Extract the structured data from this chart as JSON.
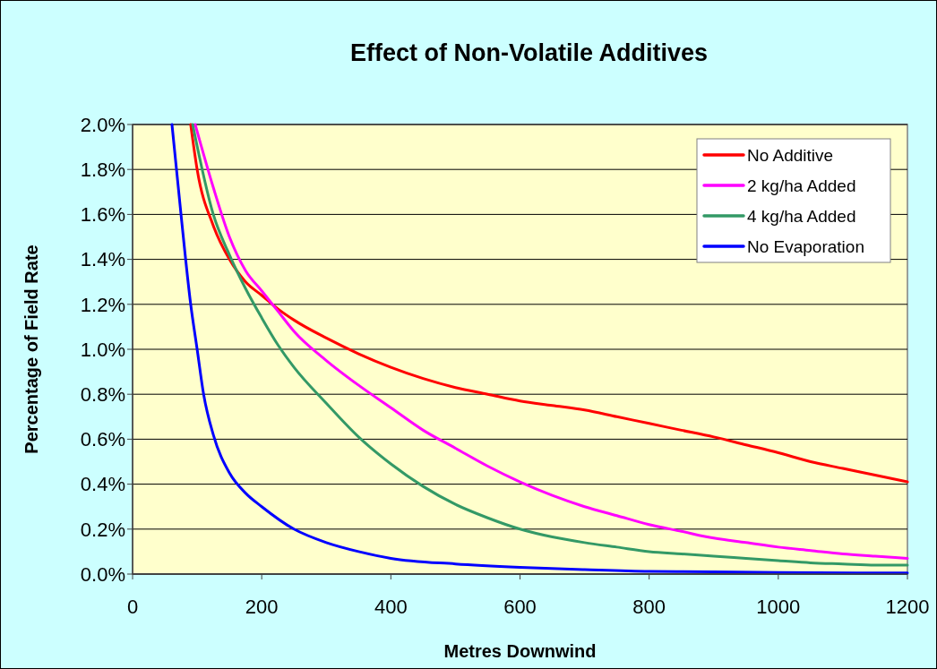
{
  "chart_data": {
    "type": "line",
    "title": "Effect of Non-Volatile Additives",
    "xlabel": "Metres Downwind",
    "ylabel": "Percentage of Field Rate",
    "xlim": [
      0,
      1200
    ],
    "xticks": [
      0,
      200,
      400,
      600,
      800,
      1000,
      1200
    ],
    "ylim": [
      0,
      2
    ],
    "yticks": [
      {
        "value": 0,
        "label": "0.0%"
      },
      {
        "value": 0.2,
        "label": "0.2%"
      },
      {
        "value": 0.4,
        "label": "0.4%"
      },
      {
        "value": 0.6,
        "label": "0.6%"
      },
      {
        "value": 0.8,
        "label": "0.8%"
      },
      {
        "value": 1.0,
        "label": "1.0%"
      },
      {
        "value": 1.2,
        "label": "1.2%"
      },
      {
        "value": 1.4,
        "label": "1.4%"
      },
      {
        "value": 1.6,
        "label": "1.6%"
      },
      {
        "value": 1.8,
        "label": "1.8%"
      },
      {
        "value": 2.0,
        "label": "2.0%"
      }
    ],
    "grid": "y",
    "legend": "top right",
    "marker": "none",
    "line_style": "solid",
    "series": [
      {
        "name": "No Additive",
        "color": "#ff0000",
        "x": [
          90,
          100,
          125,
          150,
          175,
          200,
          225,
          250,
          300,
          350,
          400,
          450,
          500,
          550,
          600,
          650,
          700,
          750,
          800,
          850,
          900,
          950,
          1000,
          1050,
          1100,
          1150,
          1200
        ],
        "values": [
          2.0,
          1.8,
          1.55,
          1.4,
          1.3,
          1.24,
          1.18,
          1.13,
          1.05,
          0.98,
          0.92,
          0.87,
          0.83,
          0.8,
          0.77,
          0.75,
          0.73,
          0.7,
          0.67,
          0.64,
          0.61,
          0.575,
          0.54,
          0.5,
          0.47,
          0.44,
          0.41
        ]
      },
      {
        "name": "2 kg/ha Added",
        "color": "#ff00ff",
        "x": [
          97,
          125,
          150,
          175,
          200,
          225,
          250,
          300,
          350,
          400,
          450,
          500,
          550,
          600,
          650,
          700,
          750,
          800,
          850,
          900,
          950,
          1000,
          1050,
          1100,
          1150,
          1200
        ],
        "values": [
          2.0,
          1.72,
          1.5,
          1.35,
          1.26,
          1.17,
          1.08,
          0.95,
          0.84,
          0.74,
          0.64,
          0.56,
          0.48,
          0.41,
          0.35,
          0.3,
          0.26,
          0.22,
          0.19,
          0.16,
          0.14,
          0.12,
          0.105,
          0.09,
          0.08,
          0.07
        ]
      },
      {
        "name": "4 kg/ha Added",
        "color": "#339966",
        "x": [
          93,
          125,
          150,
          175,
          200,
          225,
          250,
          300,
          350,
          400,
          450,
          500,
          550,
          600,
          650,
          700,
          750,
          800,
          850,
          900,
          950,
          1000,
          1050,
          1100,
          1150,
          1200
        ],
        "values": [
          2.0,
          1.6,
          1.42,
          1.27,
          1.14,
          1.02,
          0.92,
          0.76,
          0.61,
          0.49,
          0.39,
          0.31,
          0.25,
          0.2,
          0.165,
          0.14,
          0.12,
          0.1,
          0.09,
          0.08,
          0.07,
          0.06,
          0.05,
          0.045,
          0.04,
          0.04
        ]
      },
      {
        "name": "No Evaporation",
        "color": "#0000ff",
        "x": [
          61,
          75,
          90,
          100,
          110,
          125,
          150,
          175,
          200,
          250,
          300,
          350,
          400,
          500,
          600,
          700,
          800,
          900,
          1000,
          1200
        ],
        "values": [
          2.0,
          1.6,
          1.2,
          1.0,
          0.8,
          0.62,
          0.45,
          0.36,
          0.3,
          0.2,
          0.14,
          0.1,
          0.07,
          0.045,
          0.03,
          0.02,
          0.012,
          0.01,
          0.007,
          0.005
        ]
      }
    ]
  }
}
